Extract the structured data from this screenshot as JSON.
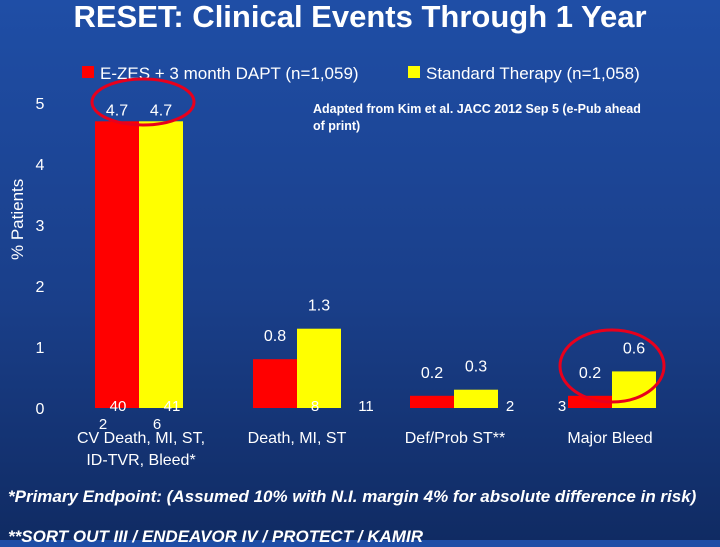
{
  "colors": {
    "series1": "#ff0000",
    "series2": "#ffff00",
    "highlight": "#e8001c",
    "text": "#ffffff"
  },
  "chart_data": {
    "type": "bar",
    "title": "RESET:  Clinical Events Through 1 Year",
    "ylabel": "% Patients",
    "ylim": [
      0,
      5
    ],
    "yticks": [
      "0",
      "1",
      "2",
      "3",
      "4",
      "5"
    ],
    "grid": false,
    "legend_position": "top",
    "categories": [
      "CV Death, MI, ST, ID-TVR, Bleed*",
      "Death, MI, ST",
      "Def/Prob ST**",
      "Major Bleed"
    ],
    "series": [
      {
        "name": "E-ZES + 3 month DAPT (n=1,059)",
        "values": [
          4.7,
          0.8,
          0.2,
          0.2
        ],
        "value_labels": [
          "4.7",
          "0.8",
          "0.2",
          "0.2"
        ],
        "count_labels": [
          "40 2",
          "8",
          "2",
          "3"
        ]
      },
      {
        "name": "Standard Therapy (n=1,058)",
        "values": [
          4.7,
          1.3,
          0.3,
          0.6
        ],
        "value_labels": [
          "4.7",
          "1.3",
          "0.3",
          "0.6"
        ],
        "count_labels": [
          "41 6",
          "11",
          "",
          ""
        ]
      }
    ],
    "annotation": "Adapted from Kim et al. JACC 2012 Sep 5 (e-Pub ahead of print)"
  },
  "footnote": "*Primary Endpoint: (Assumed 10% with N.I. margin 4% for absolute difference in risk)",
  "footnote2": "**SORT OUT III / ENDEAVOR IV / PROTECT / KAMIR"
}
